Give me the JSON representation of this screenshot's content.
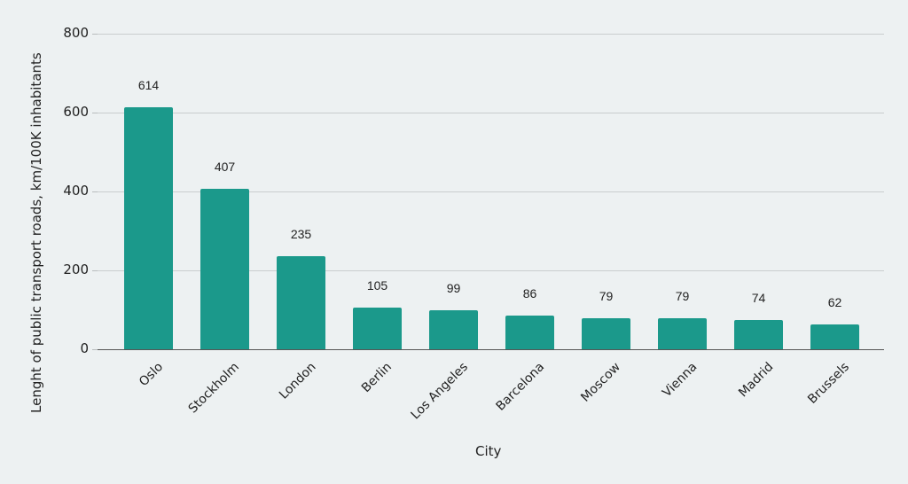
{
  "chart_data": {
    "type": "bar",
    "title": "",
    "xlabel": "City",
    "ylabel": "Lenght of public transport roads, km/100K inhabitants",
    "categories": [
      "Oslo",
      "Stockholm",
      "London",
      "Berlin",
      "Los Angeles",
      "Barcelona",
      "Moscow",
      "Vienna",
      "Madrid",
      "Brussels"
    ],
    "values": [
      614,
      407,
      235,
      105,
      99,
      86,
      79,
      79,
      74,
      62
    ],
    "data_labels": [
      "614",
      "407",
      "235",
      "105",
      "99",
      "86",
      "79",
      "79",
      "74",
      "62"
    ],
    "ylim": [
      0,
      800
    ],
    "yticks": [
      "0",
      "200",
      "400",
      "600",
      "800"
    ],
    "grid": true,
    "legend": null,
    "bar_color": "#1b998b"
  }
}
